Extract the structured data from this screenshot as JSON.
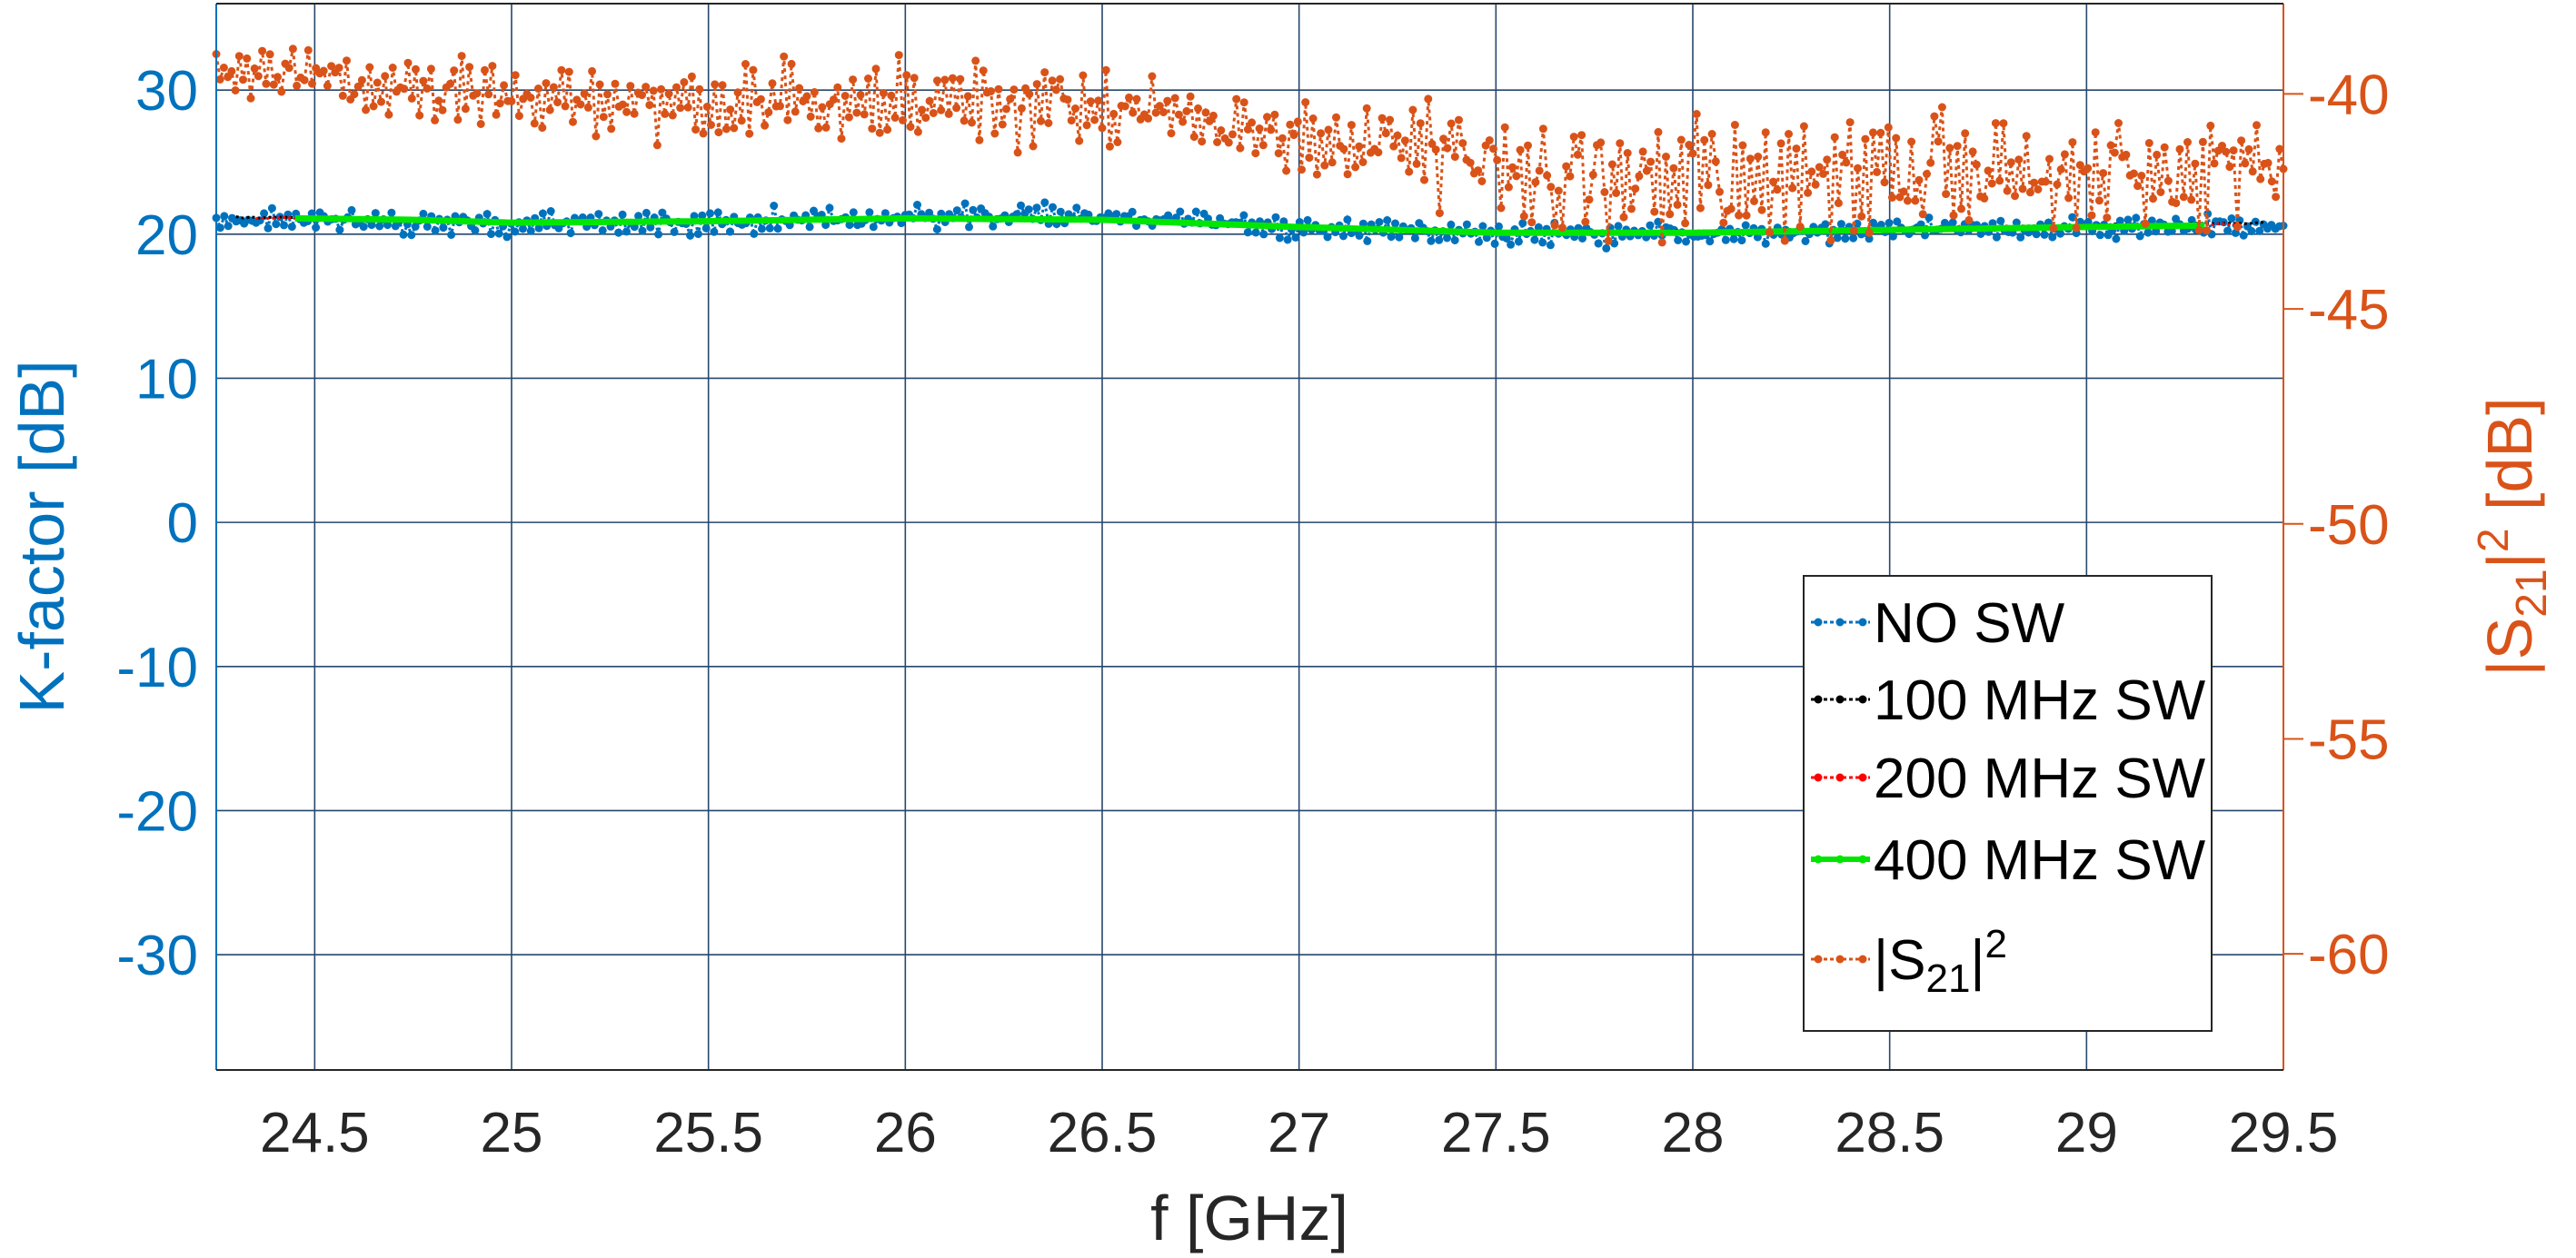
{
  "chart_data": {
    "type": "line",
    "xlabel": "f [GHz]",
    "ylabel_left": "K-factor [dB]",
    "ylabel_right": {
      "base": "|S",
      "sub": "21",
      "mid": "|",
      "sup": "2",
      "tail": " [dB]"
    },
    "xlim": [
      24.25,
      29.5
    ],
    "ylim_left": [
      -38,
      36
    ],
    "ylim_right": [
      -62.7,
      -37.9
    ],
    "x_ticks": [
      "24.5",
      "25",
      "25.5",
      "26",
      "26.5",
      "27",
      "27.5",
      "28",
      "28.5",
      "29",
      "29.5"
    ],
    "x_tick_values": [
      24.5,
      25,
      25.5,
      26,
      26.5,
      27,
      27.5,
      28,
      28.5,
      29,
      29.5
    ],
    "y_left_ticks": [
      "30",
      "20",
      "10",
      "0",
      "-10",
      "-20",
      "-30"
    ],
    "y_left_tick_values": [
      30,
      20,
      10,
      0,
      -10,
      -20,
      -30
    ],
    "y_right_ticks": [
      "-40",
      "-45",
      "-50",
      "-55",
      "-60"
    ],
    "y_right_tick_values": [
      -40,
      -45,
      -50,
      -55,
      -60
    ],
    "grid": true,
    "legend_position": "lower-right",
    "colors": {
      "left_axis": "#0072BD",
      "right_axis": "#D95319",
      "grid": "#26476b"
    },
    "series": [
      {
        "name": "NO SW",
        "axis": "left",
        "color": "#0072BD",
        "x": [
          24.25,
          24.5,
          25.0,
          25.5,
          26.0,
          26.5,
          27.0,
          27.5,
          28.0,
          28.5,
          29.0,
          29.5
        ],
        "y": [
          21.0,
          21.0,
          20.6,
          20.9,
          21.2,
          21.2,
          20.4,
          20.0,
          20.0,
          20.3,
          20.5,
          20.6
        ],
        "ripple": 1.0
      },
      {
        "name": "100 MHz SW",
        "axis": "left",
        "color": "#000000",
        "x": [
          24.3,
          24.5,
          25.0,
          25.5,
          26.0,
          26.5,
          27.0,
          27.5,
          28.0,
          28.5,
          29.0,
          29.45
        ],
        "y": [
          21.2,
          21.1,
          20.8,
          20.9,
          21.1,
          21.0,
          20.6,
          20.1,
          20.2,
          20.4,
          20.6,
          20.8
        ],
        "ripple": 0.1
      },
      {
        "name": "200 MHz SW",
        "axis": "left",
        "color": "#FF0000",
        "x": [
          24.35,
          24.5,
          25.0,
          25.5,
          26.0,
          26.5,
          27.0,
          27.5,
          28.0,
          28.5,
          29.0,
          29.4
        ],
        "y": [
          21.1,
          21.1,
          20.8,
          20.9,
          21.1,
          21.0,
          20.6,
          20.1,
          20.2,
          20.4,
          20.6,
          20.7
        ],
        "ripple": 0.1
      },
      {
        "name": "400 MHz SW",
        "axis": "left",
        "color": "#00E600",
        "x": [
          24.45,
          24.75,
          25.0,
          25.5,
          26.0,
          26.5,
          27.0,
          27.5,
          28.0,
          28.5,
          29.0,
          29.3
        ],
        "y": [
          21.1,
          21.0,
          20.8,
          20.9,
          21.1,
          21.0,
          20.5,
          20.1,
          20.1,
          20.3,
          20.5,
          20.6
        ],
        "ripple": 0.0
      },
      {
        "name": "|S21|^2",
        "label": {
          "base": "|S",
          "sub": "21",
          "mid": "|",
          "sup": "2"
        },
        "axis": "right",
        "color": "#D95319",
        "x": [
          24.25,
          24.5,
          25.0,
          25.5,
          26.0,
          26.5,
          26.8,
          27.0,
          27.5,
          28.0,
          28.5,
          29.0,
          29.5
        ],
        "y": [
          -39.2,
          -39.7,
          -40.1,
          -40.2,
          -40.2,
          -40.3,
          -40.8,
          -41.0,
          -41.6,
          -42.0,
          -41.8,
          -41.9,
          -41.8
        ],
        "ripple": [
          0.8,
          0.9,
          1.0,
          1.2,
          1.2,
          1.1,
          1.0,
          1.0,
          1.8,
          1.9,
          1.8,
          1.6,
          1.6
        ]
      }
    ]
  }
}
